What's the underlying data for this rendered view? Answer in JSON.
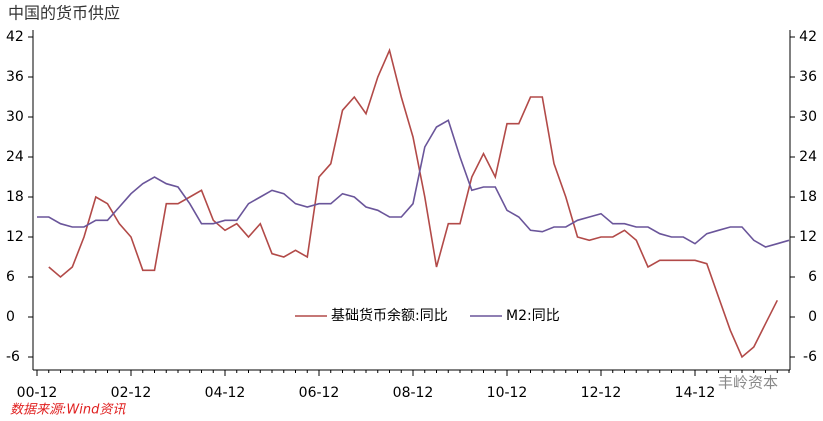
{
  "chart_data": {
    "type": "line",
    "title": "中国的货币供应",
    "source": "数据来源:Wind资讯",
    "watermark": "丰岭资本",
    "categories": [
      "00-12",
      null,
      null,
      null,
      null,
      null,
      null,
      null,
      "02-12",
      null,
      null,
      null,
      null,
      null,
      null,
      null,
      "04-12",
      null,
      null,
      null,
      null,
      null,
      null,
      null,
      "06-12",
      null,
      null,
      null,
      null,
      null,
      null,
      null,
      "08-12",
      null,
      null,
      null,
      null,
      null,
      null,
      null,
      "10-12",
      null,
      null,
      null,
      null,
      null,
      null,
      null,
      "12-12",
      null,
      null,
      null,
      null,
      null,
      null,
      null,
      "14-12",
      null,
      null,
      null,
      null,
      null,
      null,
      null,
      null
    ],
    "series": [
      {
        "name": "基础货币余额:同比",
        "color": "#b24a48",
        "values": [
          null,
          7.5,
          6,
          7.5,
          12,
          18,
          17,
          14,
          12,
          7,
          7,
          17,
          17,
          18,
          19,
          14.5,
          13,
          14,
          12,
          14,
          9.5,
          9,
          10,
          9,
          21,
          23,
          31,
          33,
          30.5,
          36,
          40,
          33,
          27,
          18,
          7.5,
          14,
          14,
          21,
          24.5,
          21,
          29,
          29,
          33,
          33,
          23,
          18,
          12,
          11.5,
          12,
          12,
          13,
          11.5,
          7.5,
          8.5,
          8.5,
          8.5,
          8.5,
          8,
          3,
          -2,
          -6,
          -4.5,
          -1,
          2.5,
          null
        ]
      },
      {
        "name": "M2:同比",
        "color": "#6a559a",
        "values": [
          15,
          15,
          14,
          13.5,
          13.5,
          14.5,
          14.5,
          16.5,
          18.5,
          20,
          21,
          20,
          19.5,
          17,
          14,
          14,
          14.5,
          14.5,
          17,
          18,
          19,
          18.5,
          17,
          16.5,
          17,
          17,
          18.5,
          18,
          16.5,
          16,
          15,
          15,
          17,
          25.5,
          28.5,
          29.5,
          24,
          19,
          19.5,
          19.5,
          16,
          15,
          13,
          12.8,
          13.5,
          13.5,
          14.5,
          15,
          15.5,
          14,
          14,
          13.5,
          13.5,
          12.5,
          12,
          12,
          11,
          12.5,
          13,
          13.5,
          13.5,
          11.5,
          10.5,
          11,
          11.5
        ]
      }
    ],
    "ylim": [
      -6,
      42
    ],
    "yticks": [
      -6,
      0,
      6,
      12,
      18,
      24,
      30,
      36,
      42
    ],
    "y2lim": [
      -6,
      42
    ],
    "y2ticks": [
      -6,
      0,
      6,
      12,
      18,
      24,
      30,
      36,
      42
    ],
    "grid": false
  }
}
